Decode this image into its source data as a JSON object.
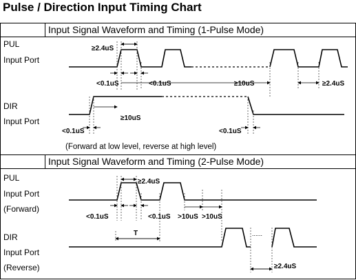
{
  "title": "Pulse / Direction Input Timing Chart",
  "sections": [
    {
      "header": "Input Signal Waveform and Timing (1-Pulse Mode)",
      "pul_label": [
        "PUL",
        "Input Port"
      ],
      "dir_label": [
        "DIR",
        "Input Port"
      ],
      "annotations": [
        "≥2.4uS",
        "<0.1uS",
        "<0.1uS",
        "≥10uS",
        "≥2.4uS",
        "≥10uS",
        "<0.1uS",
        "<0.1uS"
      ],
      "note": "(Forward at low level, reverse at high level)"
    },
    {
      "header": "Input Signal Waveform and Timing (2-Pulse Mode)",
      "pul_label": [
        "PUL",
        "Input Port",
        "(Forward)"
      ],
      "dir_label": [
        "DIR",
        "Input Port",
        "(Reverse)"
      ],
      "annotations": [
        "≥2.4uS",
        "<0.1uS",
        "<0.1uS",
        ">10uS",
        ">10uS",
        "T",
        "≥2.4uS"
      ]
    }
  ]
}
